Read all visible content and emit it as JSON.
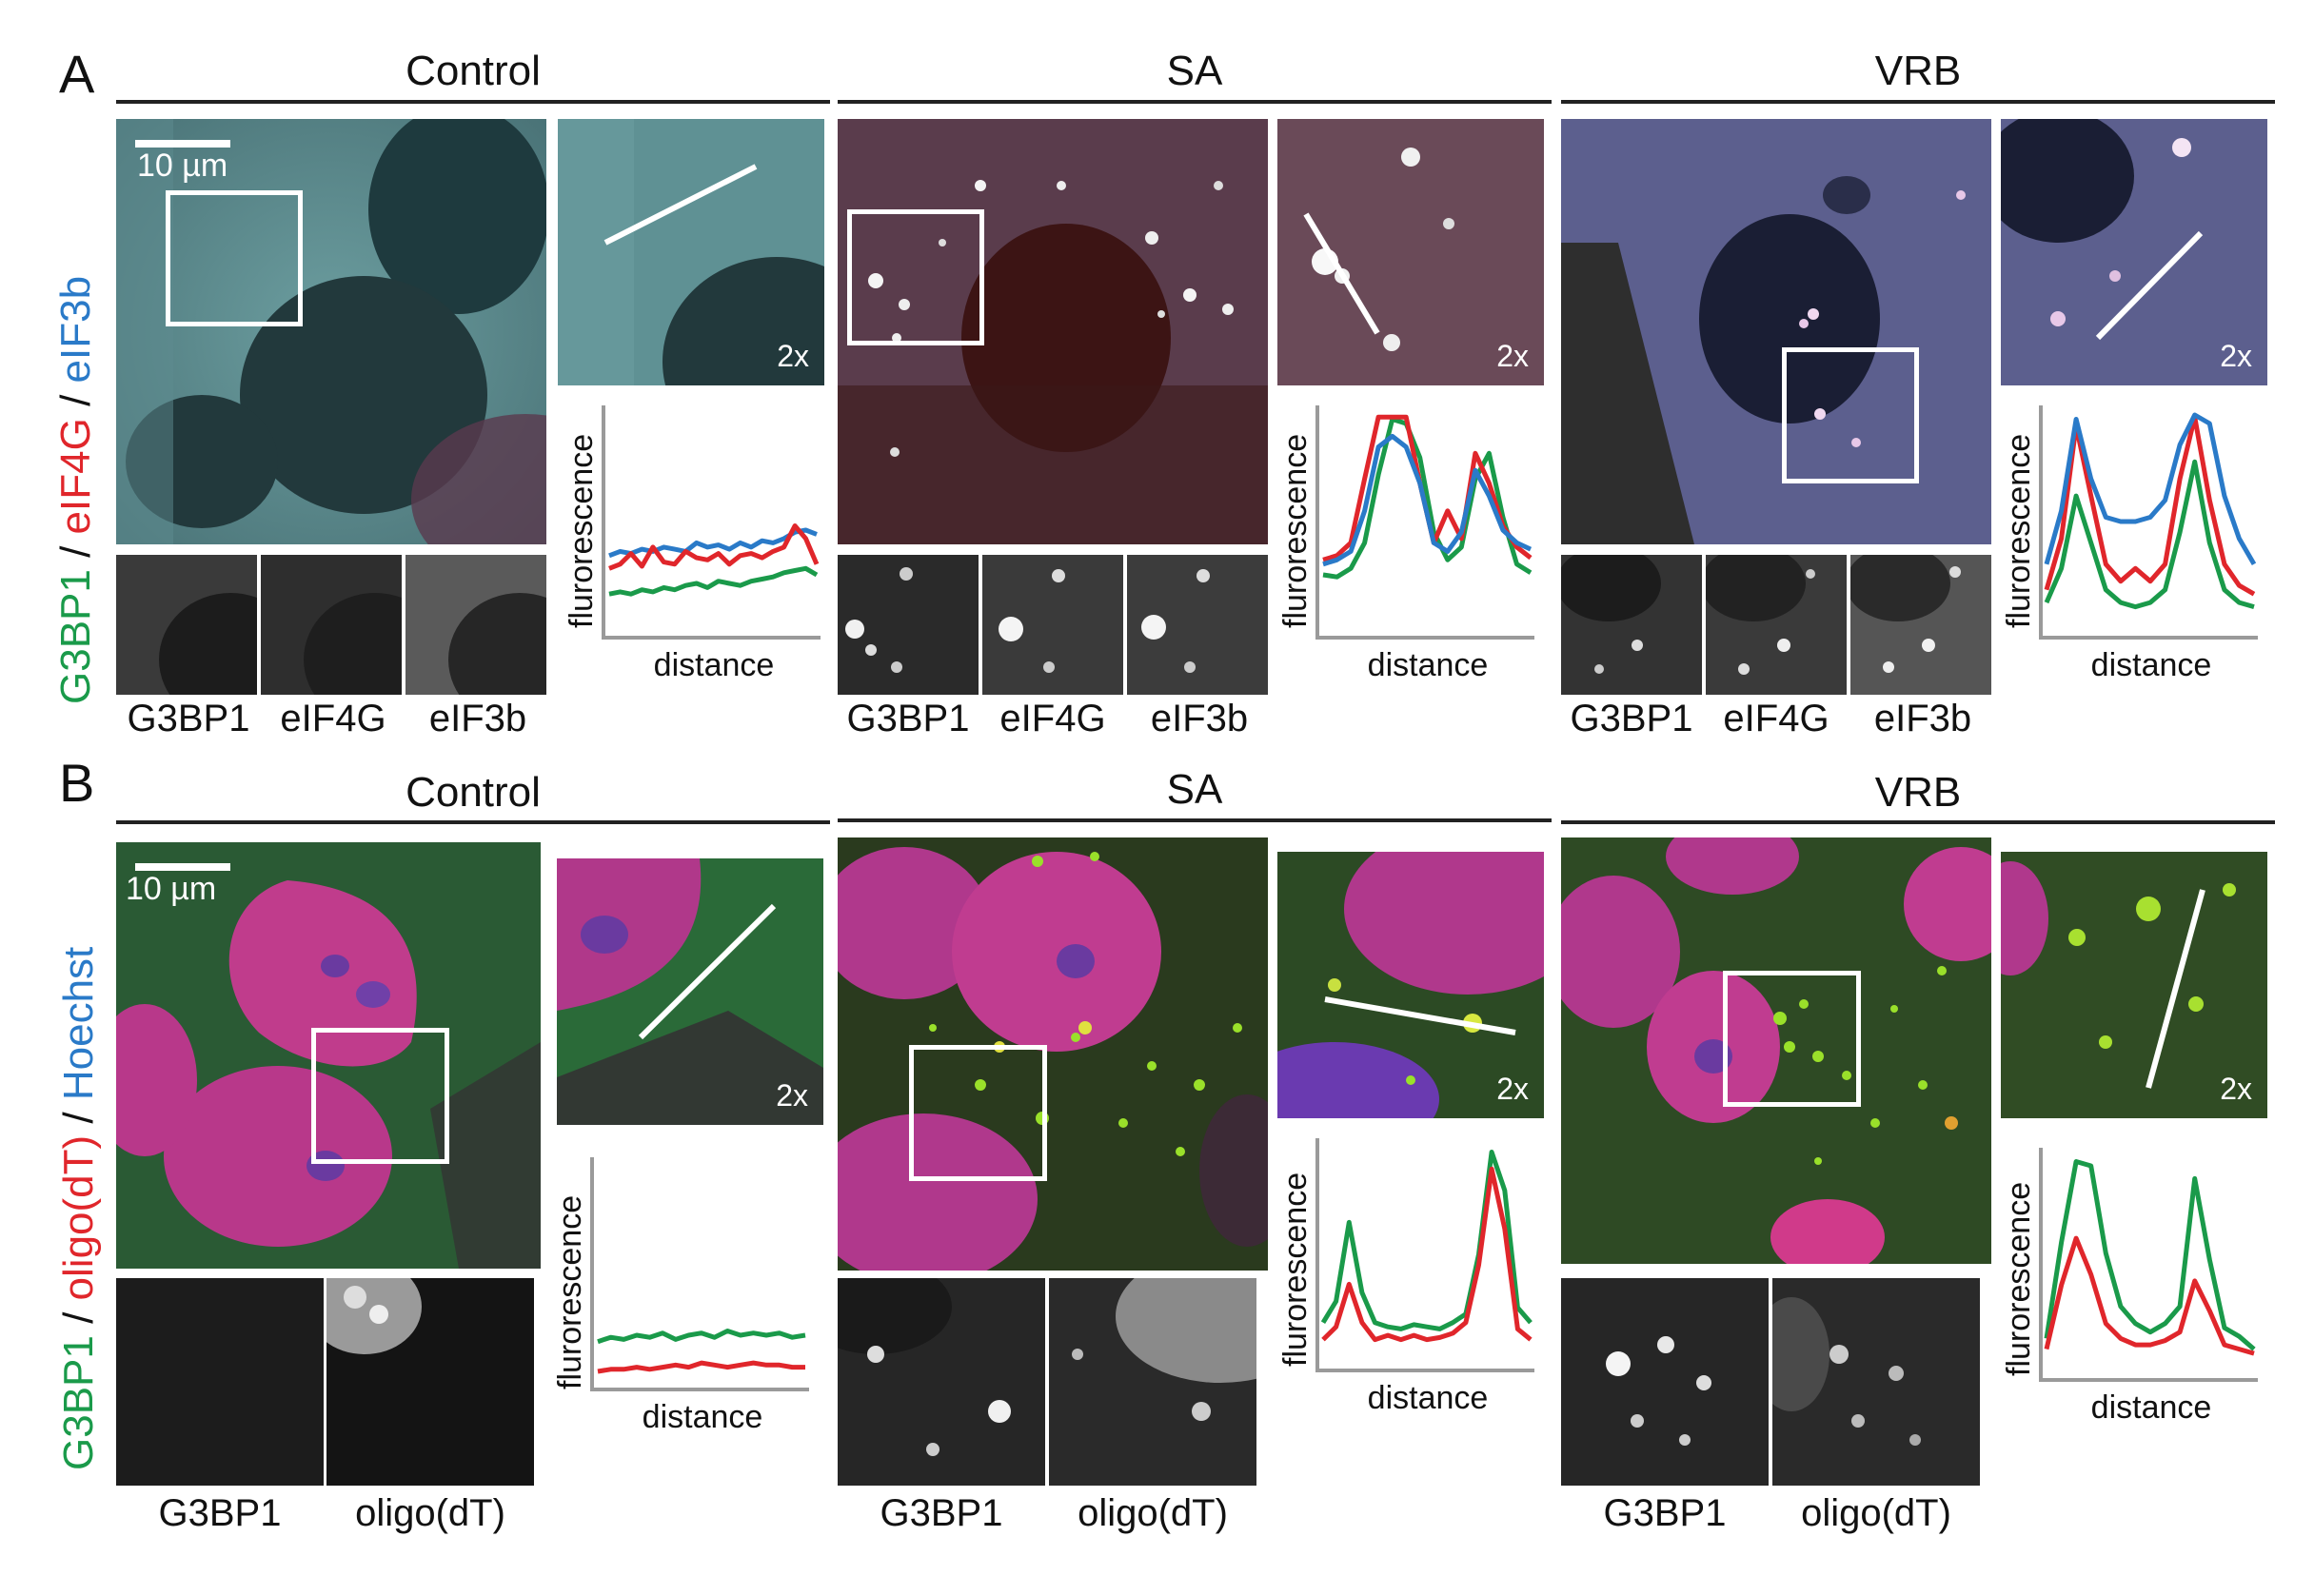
{
  "panel_a": {
    "letter": "A",
    "channel_label": [
      {
        "text": "G3BP1",
        "color": "#1a9a4a"
      },
      {
        "text": " / ",
        "color": "#111111"
      },
      {
        "text": "eIF4G",
        "color": "#e0262b"
      },
      {
        "text": " / ",
        "color": "#111111"
      },
      {
        "text": "eIF3b",
        "color": "#2a7ac8"
      }
    ],
    "scale_bar": "10 µm",
    "zoom_label": "2x",
    "conditions": [
      "Control",
      "SA",
      "VRB"
    ],
    "gray_labels": [
      "G3BP1",
      "eIF4G",
      "eIF3b"
    ],
    "ylabel": "flurorescence",
    "xlabel": "distance"
  },
  "panel_b": {
    "letter": "B",
    "channel_label": [
      {
        "text": "G3BP1",
        "color": "#1a9a4a"
      },
      {
        "text": " / ",
        "color": "#111111"
      },
      {
        "text": "oligo(dT)",
        "color": "#e0262b"
      },
      {
        "text": " / ",
        "color": "#111111"
      },
      {
        "text": "Hoechst",
        "color": "#2a7ac8"
      }
    ],
    "scale_bar": "10 µm",
    "zoom_label": "2x",
    "conditions": [
      "Control",
      "SA",
      "VRB"
    ],
    "gray_labels": [
      "G3BP1",
      "oligo(dT)"
    ],
    "ylabel": "flurorescence",
    "xlabel": "distance"
  },
  "colors": {
    "green": "#1a9a4a",
    "red": "#e0262b",
    "blue": "#2a7ac8",
    "axis": "#9a9a9a"
  },
  "chart_data": [
    {
      "type": "line",
      "title": "Control",
      "xlabel": "distance",
      "ylabel": "flurorescence",
      "series": [
        {
          "color": "#2a7ac8",
          "values": [
            0.34,
            0.36,
            0.35,
            0.37,
            0.36,
            0.38,
            0.37,
            0.36,
            0.4,
            0.38,
            0.39,
            0.37,
            0.4,
            0.38,
            0.41,
            0.4,
            0.42,
            0.45,
            0.46,
            0.44
          ]
        },
        {
          "color": "#e0262b",
          "values": [
            0.28,
            0.3,
            0.35,
            0.29,
            0.38,
            0.31,
            0.3,
            0.36,
            0.33,
            0.32,
            0.35,
            0.3,
            0.34,
            0.35,
            0.33,
            0.36,
            0.38,
            0.48,
            0.42,
            0.3
          ]
        },
        {
          "color": "#1a9a4a",
          "values": [
            0.16,
            0.17,
            0.16,
            0.18,
            0.17,
            0.19,
            0.18,
            0.2,
            0.21,
            0.19,
            0.22,
            0.21,
            0.2,
            0.22,
            0.23,
            0.24,
            0.26,
            0.27,
            0.28,
            0.25
          ]
        }
      ]
    },
    {
      "type": "line",
      "title": "SA",
      "xlabel": "distance",
      "ylabel": "flurorescence",
      "series": [
        {
          "color": "#1a9a4a",
          "values": [
            0.25,
            0.24,
            0.28,
            0.4,
            0.72,
            0.98,
            0.96,
            0.8,
            0.45,
            0.32,
            0.38,
            0.7,
            0.82,
            0.52,
            0.3,
            0.26
          ]
        },
        {
          "color": "#e0262b",
          "values": [
            0.32,
            0.34,
            0.4,
            0.7,
            0.99,
            0.99,
            0.99,
            0.68,
            0.4,
            0.55,
            0.42,
            0.82,
            0.68,
            0.48,
            0.38,
            0.33
          ]
        },
        {
          "color": "#2a7ac8",
          "values": [
            0.3,
            0.32,
            0.36,
            0.55,
            0.85,
            0.9,
            0.85,
            0.68,
            0.4,
            0.36,
            0.45,
            0.74,
            0.62,
            0.46,
            0.4,
            0.37
          ]
        }
      ]
    },
    {
      "type": "line",
      "title": "VRB",
      "xlabel": "distance",
      "ylabel": "flurorescence",
      "series": [
        {
          "color": "#1a9a4a",
          "values": [
            0.12,
            0.28,
            0.62,
            0.4,
            0.18,
            0.12,
            0.1,
            0.12,
            0.18,
            0.45,
            0.78,
            0.4,
            0.18,
            0.12,
            0.1
          ]
        },
        {
          "color": "#e0262b",
          "values": [
            0.18,
            0.42,
            0.95,
            0.62,
            0.3,
            0.22,
            0.28,
            0.22,
            0.3,
            0.7,
            0.99,
            0.6,
            0.3,
            0.2,
            0.16
          ]
        },
        {
          "color": "#2a7ac8",
          "values": [
            0.3,
            0.55,
            0.98,
            0.7,
            0.52,
            0.5,
            0.5,
            0.52,
            0.6,
            0.86,
            1.0,
            0.96,
            0.62,
            0.42,
            0.3
          ]
        }
      ]
    },
    {
      "type": "line",
      "title": "Control",
      "xlabel": "distance",
      "ylabel": "flurorescence",
      "series": [
        {
          "color": "#1a9a4a",
          "values": [
            0.18,
            0.2,
            0.19,
            0.21,
            0.2,
            0.22,
            0.19,
            0.21,
            0.22,
            0.2,
            0.23,
            0.21,
            0.22,
            0.21,
            0.22,
            0.2,
            0.21
          ]
        },
        {
          "color": "#e0262b",
          "values": [
            0.04,
            0.05,
            0.05,
            0.06,
            0.05,
            0.06,
            0.07,
            0.06,
            0.08,
            0.07,
            0.06,
            0.07,
            0.08,
            0.07,
            0.07,
            0.06,
            0.06
          ]
        }
      ]
    },
    {
      "type": "line",
      "title": "SA",
      "xlabel": "distance",
      "ylabel": "flurorescence",
      "series": [
        {
          "color": "#1a9a4a",
          "values": [
            0.18,
            0.28,
            0.65,
            0.32,
            0.18,
            0.16,
            0.15,
            0.17,
            0.16,
            0.15,
            0.18,
            0.22,
            0.5,
            0.98,
            0.8,
            0.25,
            0.18
          ]
        },
        {
          "color": "#e0262b",
          "values": [
            0.1,
            0.16,
            0.36,
            0.18,
            0.1,
            0.12,
            0.1,
            0.12,
            0.1,
            0.11,
            0.13,
            0.18,
            0.45,
            0.9,
            0.62,
            0.15,
            0.1
          ]
        }
      ]
    },
    {
      "type": "line",
      "title": "VRB",
      "xlabel": "distance",
      "ylabel": "flurorescence",
      "series": [
        {
          "color": "#1a9a4a",
          "values": [
            0.15,
            0.6,
            0.98,
            0.96,
            0.55,
            0.3,
            0.22,
            0.18,
            0.22,
            0.3,
            0.9,
            0.52,
            0.2,
            0.16,
            0.1
          ]
        },
        {
          "color": "#e0262b",
          "values": [
            0.1,
            0.4,
            0.62,
            0.45,
            0.22,
            0.15,
            0.12,
            0.12,
            0.14,
            0.18,
            0.42,
            0.28,
            0.12,
            0.1,
            0.08
          ]
        }
      ]
    }
  ]
}
